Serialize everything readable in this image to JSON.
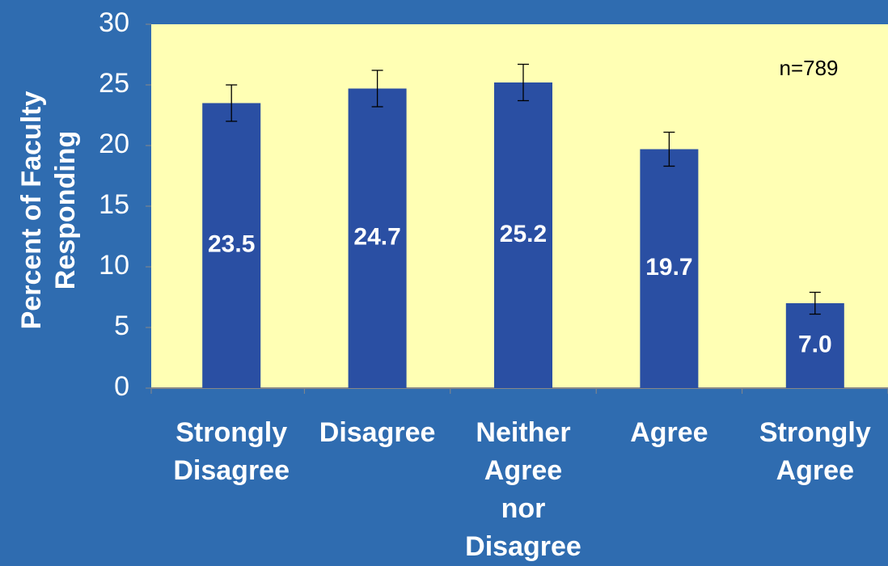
{
  "chart_data": {
    "type": "bar",
    "categories": [
      "Strongly Disagree",
      "Disagree",
      "Neither Agree nor Disagree",
      "Agree",
      "Strongly Agree"
    ],
    "values": [
      23.5,
      24.7,
      25.2,
      19.7,
      7.0
    ],
    "value_labels": [
      "23.5",
      "24.7",
      "25.2",
      "19.7",
      "7.0"
    ],
    "errors": [
      1.5,
      1.5,
      1.5,
      1.4,
      0.9
    ],
    "color": "#2a4fa3",
    "y_label": "Percent of Faculty Responding",
    "annotation": "n=789",
    "ylim": [
      0,
      30
    ],
    "yticks": [
      0,
      5,
      10,
      15,
      20,
      25,
      30
    ]
  }
}
